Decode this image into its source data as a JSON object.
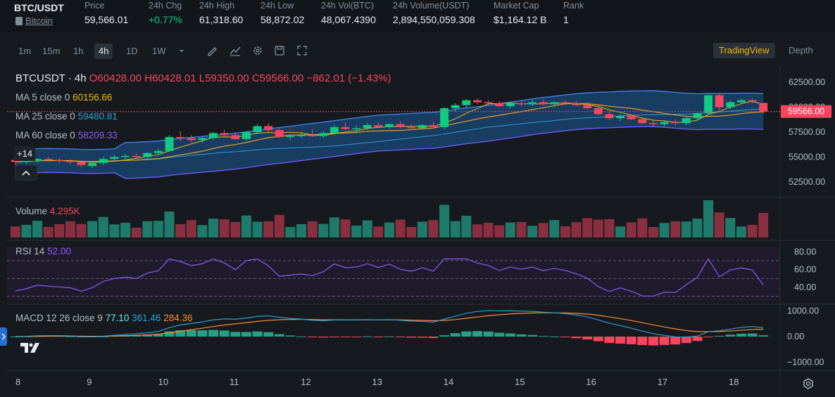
{
  "header": {
    "pair": "BTC/USDT",
    "coin": "Bitcoin",
    "stats": [
      {
        "label": "Price",
        "value": "59,566.01",
        "color": "#eaecef"
      },
      {
        "label": "24h Chg",
        "value": "+0.77%",
        "color": "#0ecb81"
      },
      {
        "label": "24h High",
        "value": "61,318.60",
        "color": "#eaecef"
      },
      {
        "label": "24h Low",
        "value": "58,872.02",
        "color": "#eaecef"
      },
      {
        "label": "24h Vol(BTC)",
        "value": "48,067.4390",
        "color": "#eaecef"
      },
      {
        "label": "24h Volume(USDT)",
        "value": "2,894,550,059.308",
        "color": "#eaecef"
      },
      {
        "label": "Market Cap",
        "value": "$1,164.12 B",
        "color": "#eaecef"
      },
      {
        "label": "Rank",
        "value": "1",
        "color": "#eaecef"
      }
    ]
  },
  "toolbar": {
    "timeframes": [
      "1m",
      "15m",
      "1h",
      "4h",
      "1D",
      "1W"
    ],
    "active": "4h",
    "tradingview": "TradingView",
    "depth": "Depth"
  },
  "legend": {
    "symbol": "BTCUSDT",
    "interval": "· 4h",
    "open": "O60428.00",
    "high": "H60428.01",
    "low": "L59350.00",
    "close": "C59566.00",
    "change": "−862.01 (−1.43%)",
    "ma5_label": "MA 5 close 0",
    "ma5_value": "60156.66",
    "ma25_label": "MA 25 close 0",
    "ma25_value": "59480.81",
    "ma60_label": "MA 60 close 0",
    "ma60_value": "58209.33",
    "more": "+14",
    "volume_label": "Volume",
    "volume_value": "4.295K",
    "rsi_label": "RSI 14",
    "rsi_value": "52.00",
    "macd_label": "MACD 12 26 close 9",
    "macd_v1": "77.10",
    "macd_v2": "361.46",
    "macd_v3": "284.36"
  },
  "axes": {
    "price_ticks": [
      "62500.00",
      "60000.00",
      "57500.00",
      "55000.00",
      "52500.00"
    ],
    "current_price": "59566.00",
    "rsi_ticks": [
      "80.00",
      "60.00",
      "40.00"
    ],
    "macd_ticks": [
      "1000.00",
      "0.00",
      "−1000.00"
    ],
    "dates": [
      "8",
      "9",
      "10",
      "11",
      "12",
      "13",
      "14",
      "15",
      "16",
      "17",
      "18"
    ]
  },
  "colors": {
    "up": "#0ecb81",
    "down": "#f6465d",
    "ma5": "#f0b90b",
    "ma25": "#2a9fd6",
    "ma60": "#8a5cf5",
    "band": "#1e5a9a",
    "vol_up": "#1e7a6a",
    "vol_down": "#8a2f3f"
  },
  "chart_data": {
    "type": "candlestick",
    "title": "BTCUSDT · 4h",
    "ylim": [
      51500,
      63500
    ],
    "candles": [
      [
        54700,
        54900,
        54200,
        54500
      ],
      [
        54500,
        54800,
        54300,
        54600
      ],
      [
        54600,
        54900,
        54400,
        54800
      ],
      [
        54800,
        55000,
        54500,
        54700
      ],
      [
        54700,
        54900,
        54400,
        54600
      ],
      [
        54600,
        54800,
        54300,
        54500
      ],
      [
        54500,
        54700,
        54000,
        54200
      ],
      [
        54100,
        54600,
        53900,
        54400
      ],
      [
        54400,
        55000,
        54200,
        54800
      ],
      [
        54800,
        55200,
        54600,
        55000
      ],
      [
        55000,
        55300,
        54800,
        55100
      ],
      [
        55100,
        55400,
        54900,
        55000
      ],
      [
        55000,
        55500,
        54800,
        55400
      ],
      [
        55400,
        55800,
        55200,
        55600
      ],
      [
        55600,
        57200,
        55500,
        57000
      ],
      [
        57000,
        57600,
        56600,
        56900
      ],
      [
        56900,
        57200,
        56500,
        56700
      ],
      [
        56700,
        57100,
        56400,
        56900
      ],
      [
        56900,
        57500,
        56700,
        57400
      ],
      [
        57400,
        57700,
        57000,
        57200
      ],
      [
        57200,
        57500,
        56700,
        56800
      ],
      [
        56800,
        57600,
        56600,
        57500
      ],
      [
        57500,
        58300,
        57300,
        58100
      ],
      [
        58100,
        58400,
        57500,
        57700
      ],
      [
        57700,
        57900,
        56900,
        57000
      ],
      [
        57000,
        57300,
        56700,
        57100
      ],
      [
        57100,
        57500,
        56900,
        57200
      ],
      [
        57200,
        57800,
        57000,
        57100
      ],
      [
        57100,
        57600,
        56900,
        57400
      ],
      [
        57400,
        58200,
        57200,
        58000
      ],
      [
        58000,
        58500,
        57700,
        57800
      ],
      [
        57800,
        58200,
        57500,
        57900
      ],
      [
        57900,
        58400,
        57700,
        58200
      ],
      [
        58200,
        58500,
        57900,
        58000
      ],
      [
        58000,
        58400,
        57800,
        58300
      ],
      [
        58300,
        58600,
        57900,
        58000
      ],
      [
        58000,
        58300,
        57700,
        57900
      ],
      [
        57900,
        58300,
        57700,
        58200
      ],
      [
        58200,
        58500,
        57900,
        58000
      ],
      [
        58000,
        60000,
        57800,
        59900
      ],
      [
        59900,
        60400,
        59600,
        60200
      ],
      [
        60200,
        60800,
        59900,
        60700
      ],
      [
        60700,
        60900,
        60300,
        60500
      ],
      [
        60500,
        60700,
        60200,
        60400
      ],
      [
        60400,
        60600,
        60000,
        60100
      ],
      [
        60100,
        60500,
        59900,
        60400
      ],
      [
        60400,
        60600,
        60100,
        60300
      ],
      [
        60300,
        60700,
        60100,
        60500
      ],
      [
        60500,
        60800,
        60200,
        60300
      ],
      [
        60300,
        60600,
        60000,
        60500
      ],
      [
        60500,
        60700,
        60200,
        60400
      ],
      [
        60400,
        60600,
        60100,
        60200
      ],
      [
        60200,
        60500,
        59800,
        59900
      ],
      [
        59900,
        60200,
        59200,
        59300
      ],
      [
        59300,
        59600,
        58700,
        58900
      ],
      [
        58900,
        59300,
        58600,
        59100
      ],
      [
        59100,
        59300,
        58700,
        58800
      ],
      [
        58800,
        59000,
        58300,
        58400
      ],
      [
        58400,
        58700,
        58100,
        58300
      ],
      [
        58300,
        58700,
        58100,
        58500
      ],
      [
        58500,
        58800,
        58200,
        58400
      ],
      [
        58400,
        59000,
        58200,
        58900
      ],
      [
        58900,
        59500,
        58700,
        59400
      ],
      [
        59400,
        61300,
        59200,
        61200
      ],
      [
        61200,
        61400,
        59700,
        60000
      ],
      [
        60000,
        60700,
        59800,
        60500
      ],
      [
        60500,
        60900,
        60300,
        60700
      ],
      [
        60700,
        60900,
        60400,
        60600
      ],
      [
        60428,
        60428,
        59350,
        59566
      ]
    ]
  }
}
